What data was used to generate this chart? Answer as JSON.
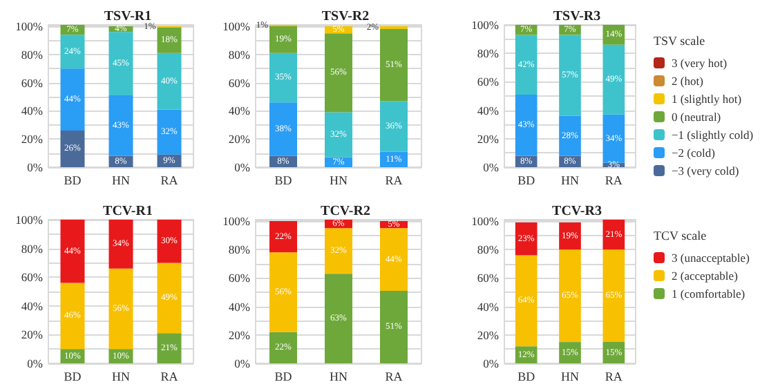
{
  "chart_data": [
    {
      "type": "bar",
      "title": "TSV-R1",
      "stacked": true,
      "categories": [
        "BD",
        "HN",
        "RA"
      ],
      "ylim": [
        0,
        101
      ],
      "grid": "y",
      "legend": false,
      "yticks": [
        {
          "value": 0,
          "label": "0%"
        },
        {
          "value": 10,
          "label": null
        },
        {
          "value": 20,
          "label": "20%"
        },
        {
          "value": 30,
          "label": null
        },
        {
          "value": 40,
          "label": "40%"
        },
        {
          "value": 50,
          "label": null
        },
        {
          "value": 60,
          "label": "60%"
        },
        {
          "value": 70,
          "label": null
        },
        {
          "value": 80,
          "label": "80%"
        },
        {
          "value": 90,
          "label": null
        },
        {
          "value": 100,
          "label": "100%"
        }
      ],
      "series": [
        {
          "color": "#4a6b9a",
          "values": [
            26,
            8,
            9
          ],
          "value_labels": [
            "26%",
            "8%",
            "9%"
          ]
        },
        {
          "color": "#2a9df4",
          "values": [
            44,
            43,
            32
          ],
          "value_labels": [
            "44%",
            "43%",
            "32%"
          ]
        },
        {
          "color": "#3ec3cc",
          "values": [
            24,
            45,
            40
          ],
          "value_labels": [
            "24%",
            "45%",
            "40%"
          ]
        },
        {
          "color": "#6ea83a",
          "values": [
            7,
            4,
            18
          ],
          "value_labels": [
            "7%",
            "4%",
            "18%"
          ]
        },
        {
          "color": "#f2c500",
          "values": [
            null,
            null,
            1
          ],
          "value_labels": [
            null,
            null,
            "1%"
          ]
        },
        {
          "color": "#cc8a32",
          "values": [
            null,
            null,
            null
          ],
          "value_labels": [
            null,
            null,
            null
          ]
        },
        {
          "color": "#b3261a",
          "values": [
            null,
            null,
            null
          ],
          "value_labels": [
            null,
            null,
            null
          ]
        }
      ]
    },
    {
      "type": "bar",
      "title": "TSV-R2",
      "stacked": true,
      "categories": [
        "BD",
        "HN",
        "RA"
      ],
      "ylim": [
        0,
        101
      ],
      "grid": "y",
      "legend": false,
      "yticks": [
        {
          "value": 0,
          "label": "0%"
        },
        {
          "value": 10,
          "label": null
        },
        {
          "value": 20,
          "label": "20%"
        },
        {
          "value": 30,
          "label": null
        },
        {
          "value": 40,
          "label": "40%"
        },
        {
          "value": 50,
          "label": null
        },
        {
          "value": 60,
          "label": "60%"
        },
        {
          "value": 70,
          "label": null
        },
        {
          "value": 80,
          "label": "80%"
        },
        {
          "value": 90,
          "label": null
        },
        {
          "value": 100,
          "label": "100%"
        }
      ],
      "series": [
        {
          "color": "#4a6b9a",
          "values": [
            8,
            null,
            null
          ],
          "value_labels": [
            "8%",
            null,
            null
          ]
        },
        {
          "color": "#2a9df4",
          "values": [
            38,
            7,
            11
          ],
          "value_labels": [
            "38%",
            "7%",
            "11%"
          ]
        },
        {
          "color": "#3ec3cc",
          "values": [
            35,
            32,
            36
          ],
          "value_labels": [
            "35%",
            "32%",
            "36%"
          ]
        },
        {
          "color": "#6ea83a",
          "values": [
            19,
            56,
            51
          ],
          "value_labels": [
            "19%",
            "56%",
            "51%"
          ]
        },
        {
          "color": "#f2c500",
          "values": [
            1,
            5,
            2
          ],
          "value_labels": [
            "1%",
            "5%",
            "2%"
          ]
        },
        {
          "color": "#cc8a32",
          "values": [
            null,
            null,
            null
          ],
          "value_labels": [
            null,
            null,
            null
          ]
        },
        {
          "color": "#b3261a",
          "values": [
            null,
            null,
            null
          ],
          "value_labels": [
            null,
            null,
            null
          ]
        }
      ]
    },
    {
      "type": "bar",
      "title": "TSV-R3",
      "stacked": true,
      "categories": [
        "BD",
        "HN",
        "RA"
      ],
      "ylim": [
        0,
        100
      ],
      "grid": "y",
      "legend": "right",
      "legend_title": "TSV scale",
      "yticks": [
        {
          "value": 0,
          "label": "0%"
        },
        {
          "value": 10,
          "label": null
        },
        {
          "value": 20,
          "label": "20%"
        },
        {
          "value": 30,
          "label": null
        },
        {
          "value": 40,
          "label": "40%"
        },
        {
          "value": 50,
          "label": null
        },
        {
          "value": 60,
          "label": "60%"
        },
        {
          "value": 70,
          "label": null
        },
        {
          "value": 80,
          "label": "80%"
        },
        {
          "value": 90,
          "label": null
        },
        {
          "value": 100,
          "label": "100%"
        }
      ],
      "series": [
        {
          "name": "−3 (very cold)",
          "color": "#4a6b9a",
          "values": [
            8,
            8,
            3
          ],
          "value_labels": [
            "8%",
            "8%",
            "3%"
          ]
        },
        {
          "name": "−2 (cold)",
          "color": "#2a9df4",
          "values": [
            43,
            28,
            34
          ],
          "value_labels": [
            "43%",
            "28%",
            "34%"
          ]
        },
        {
          "name": "−1 (slightly cold)",
          "color": "#3ec3cc",
          "values": [
            42,
            57,
            49
          ],
          "value_labels": [
            "42%",
            "57%",
            "49%"
          ]
        },
        {
          "name": "0 (neutral)",
          "color": "#6ea83a",
          "values": [
            7,
            7,
            14
          ],
          "value_labels": [
            "7%",
            "7%",
            "14%"
          ]
        },
        {
          "name": "1 (slightly hot)",
          "color": "#f2c500",
          "values": [
            null,
            null,
            null
          ],
          "value_labels": [
            null,
            null,
            null
          ]
        },
        {
          "name": "2 (hot)",
          "color": "#cc8a32",
          "values": [
            null,
            null,
            null
          ],
          "value_labels": [
            null,
            null,
            null
          ]
        },
        {
          "name": "3 (very hot)",
          "color": "#b3261a",
          "values": [
            null,
            null,
            null
          ],
          "value_labels": [
            null,
            null,
            null
          ]
        }
      ]
    },
    {
      "type": "bar",
      "title": "TCV-R1",
      "stacked": true,
      "categories": [
        "BD",
        "HN",
        "RA"
      ],
      "ylim": [
        0,
        100
      ],
      "grid": "y",
      "legend": false,
      "yticks": [
        {
          "value": 0,
          "label": "0%"
        },
        {
          "value": 10,
          "label": null
        },
        {
          "value": 20,
          "label": "20%"
        },
        {
          "value": 30,
          "label": null
        },
        {
          "value": 40,
          "label": "40%"
        },
        {
          "value": 50,
          "label": null
        },
        {
          "value": 60,
          "label": "60%"
        },
        {
          "value": 70,
          "label": null
        },
        {
          "value": 80,
          "label": "80%"
        },
        {
          "value": 90,
          "label": null
        },
        {
          "value": 100,
          "label": "100%"
        }
      ],
      "series": [
        {
          "color": "#6ea83a",
          "values": [
            10,
            10,
            21
          ],
          "value_labels": [
            "10%",
            "10%",
            "21%"
          ]
        },
        {
          "color": "#f7c000",
          "values": [
            46,
            56,
            49
          ],
          "value_labels": [
            "46%",
            "56%",
            "49%"
          ]
        },
        {
          "color": "#e8191a",
          "values": [
            44,
            34,
            30
          ],
          "value_labels": [
            "44%",
            "34%",
            "30%"
          ]
        }
      ]
    },
    {
      "type": "bar",
      "title": "TCV-R2",
      "stacked": true,
      "categories": [
        "BD",
        "HN",
        "RA"
      ],
      "ylim": [
        0,
        101
      ],
      "grid": "y",
      "legend": false,
      "yticks": [
        {
          "value": 0,
          "label": "0%"
        },
        {
          "value": 10,
          "label": null
        },
        {
          "value": 20,
          "label": "20%"
        },
        {
          "value": 30,
          "label": null
        },
        {
          "value": 40,
          "label": "40%"
        },
        {
          "value": 50,
          "label": null
        },
        {
          "value": 60,
          "label": "60%"
        },
        {
          "value": 70,
          "label": null
        },
        {
          "value": 80,
          "label": "80%"
        },
        {
          "value": 90,
          "label": null
        },
        {
          "value": 100,
          "label": "100%"
        }
      ],
      "series": [
        {
          "color": "#6ea83a",
          "values": [
            22,
            63,
            51
          ],
          "value_labels": [
            "22%",
            "63%",
            "51%"
          ]
        },
        {
          "color": "#f7c000",
          "values": [
            56,
            32,
            44
          ],
          "value_labels": [
            "56%",
            "32%",
            "44%"
          ]
        },
        {
          "color": "#e8191a",
          "values": [
            22,
            6,
            5
          ],
          "value_labels": [
            "22%",
            "6%",
            "5%"
          ]
        }
      ]
    },
    {
      "type": "bar",
      "title": "TCV-R3",
      "stacked": true,
      "categories": [
        "BD",
        "HN",
        "RA"
      ],
      "ylim": [
        0,
        101
      ],
      "grid": "y",
      "legend": "right",
      "legend_title": "TCV scale",
      "yticks": [
        {
          "value": 0,
          "label": "0%"
        },
        {
          "value": 10,
          "label": null
        },
        {
          "value": 20,
          "label": "20%"
        },
        {
          "value": 30,
          "label": null
        },
        {
          "value": 40,
          "label": "40%"
        },
        {
          "value": 50,
          "label": null
        },
        {
          "value": 60,
          "label": "60%"
        },
        {
          "value": 70,
          "label": null
        },
        {
          "value": 80,
          "label": "80%"
        },
        {
          "value": 90,
          "label": null
        },
        {
          "value": 100,
          "label": "100%"
        }
      ],
      "series": [
        {
          "name": "1 (comfortable)",
          "color": "#6ea83a",
          "values": [
            12,
            15,
            15
          ],
          "value_labels": [
            "12%",
            "15%",
            "15%"
          ]
        },
        {
          "name": "2 (acceptable)",
          "color": "#f7c000",
          "values": [
            64,
            65,
            65
          ],
          "value_labels": [
            "64%",
            "65%",
            "65%"
          ]
        },
        {
          "name": "3 (unacceptable)",
          "color": "#e8191a",
          "values": [
            23,
            19,
            21
          ],
          "value_labels": [
            "23%",
            "19%",
            "21%"
          ]
        }
      ]
    }
  ]
}
